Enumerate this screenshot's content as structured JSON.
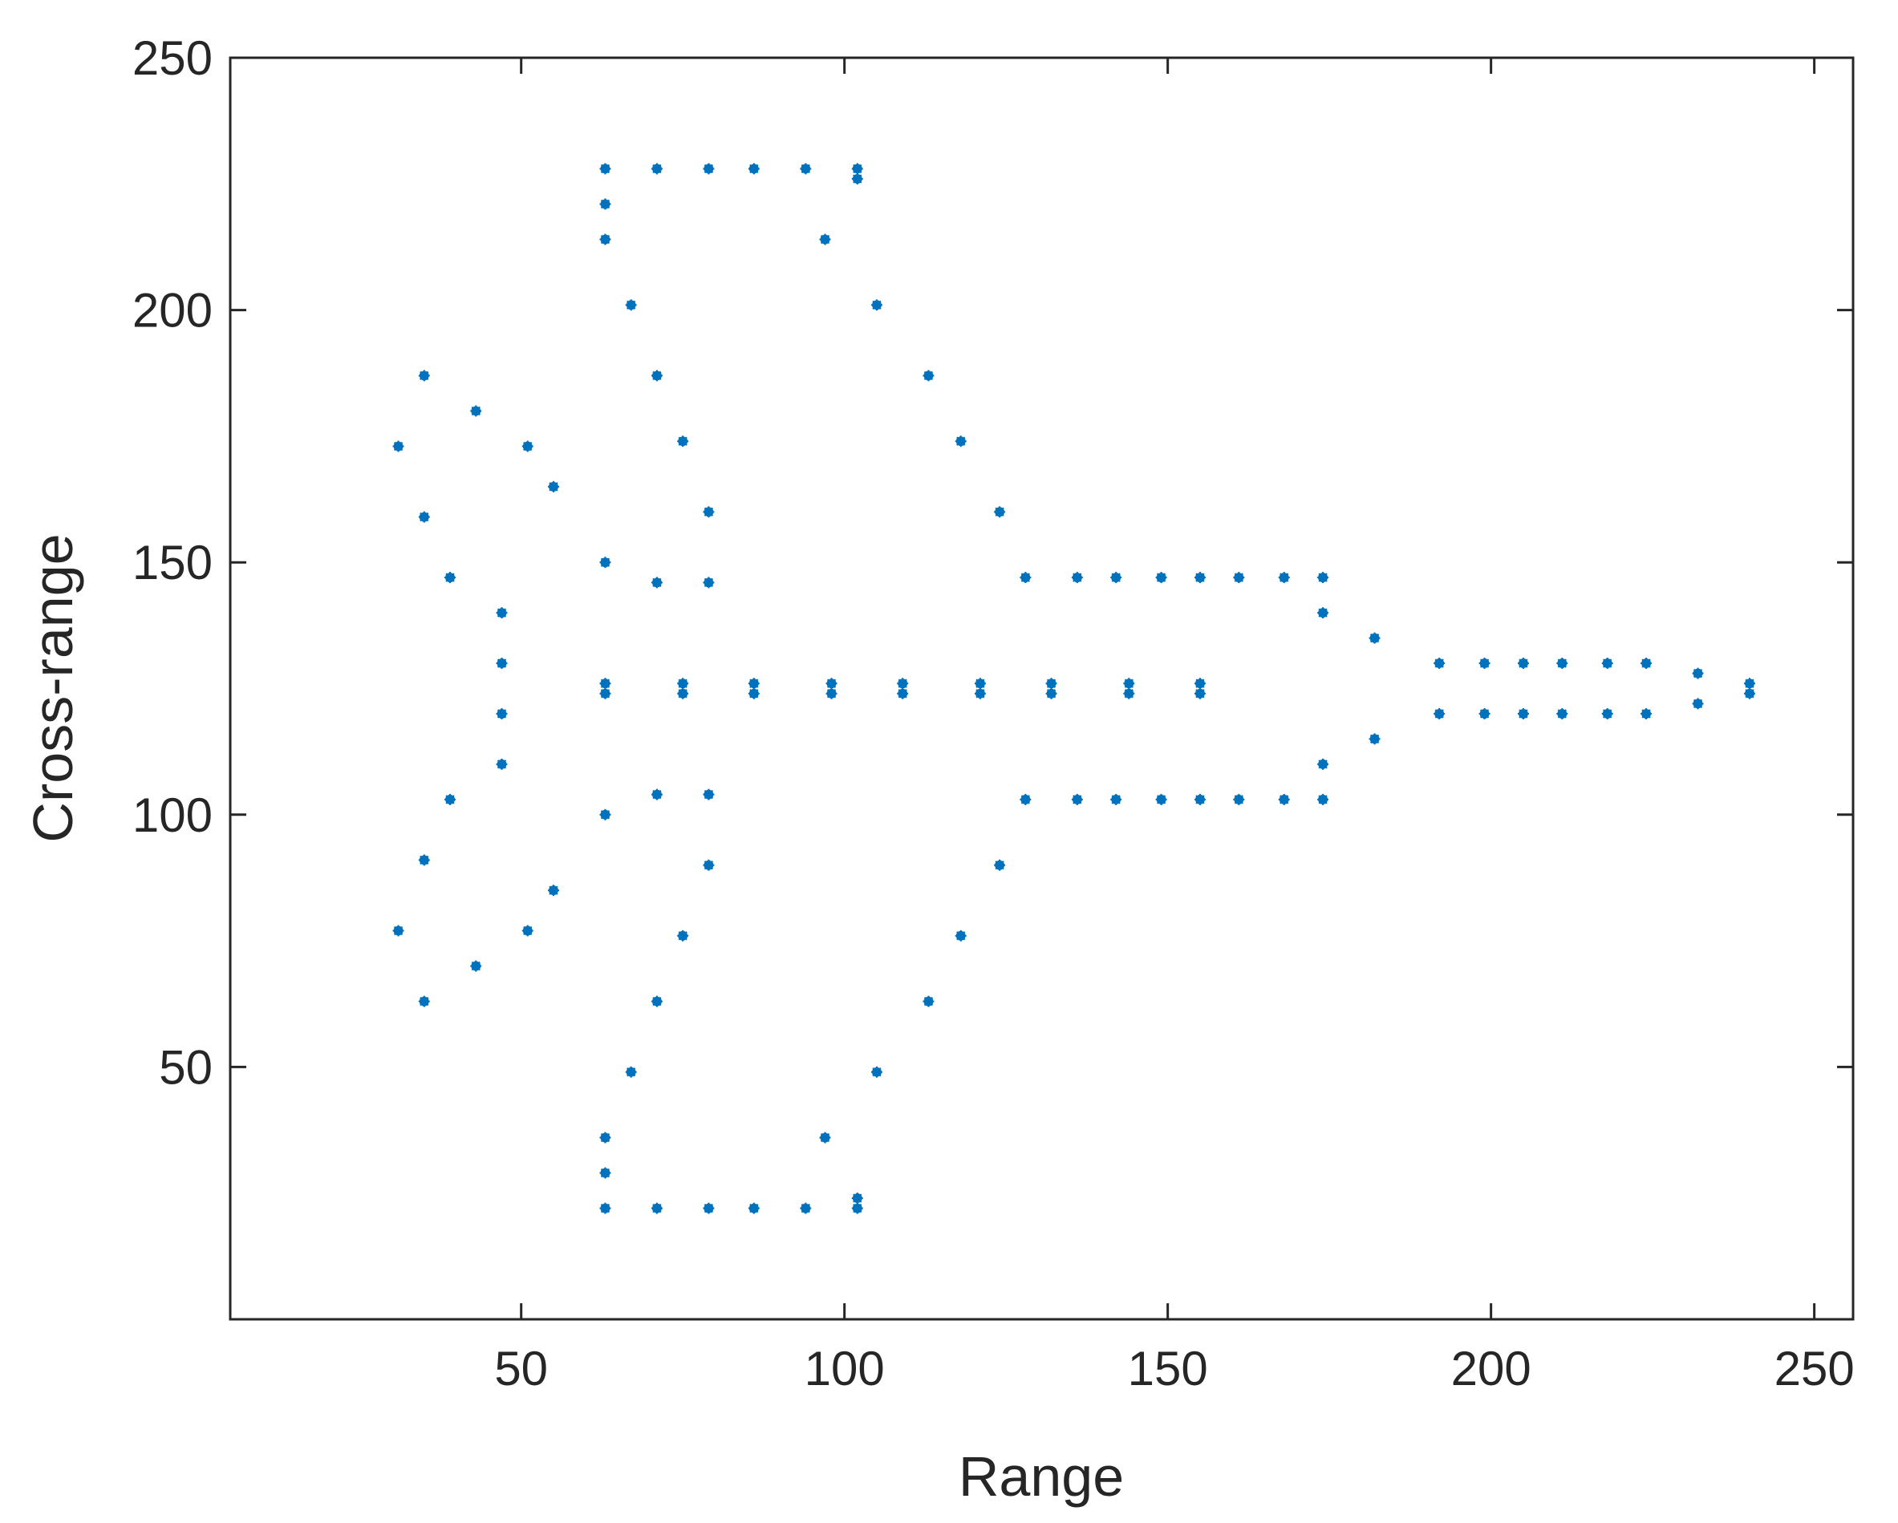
{
  "chart_data": {
    "type": "scatter",
    "title": "",
    "xlabel": "Range",
    "ylabel": "Cross-range",
    "xlim": [
      5,
      256
    ],
    "ylim": [
      0,
      250
    ],
    "xticks": [
      50,
      100,
      150,
      200,
      250
    ],
    "yticks": [
      50,
      100,
      150,
      200,
      250
    ],
    "grid": false,
    "legend": "none",
    "marker": "*",
    "colors": {
      "series": "#0072BD",
      "axes": "#262626",
      "background": "#ffffff"
    },
    "series": [
      {
        "points": [
          [
            63,
            228
          ],
          [
            71,
            228
          ],
          [
            79,
            228
          ],
          [
            86,
            228
          ],
          [
            94,
            228
          ],
          [
            102,
            228
          ],
          [
            102,
            226
          ],
          [
            63,
            221
          ],
          [
            63,
            214
          ],
          [
            97,
            214
          ],
          [
            67,
            201
          ],
          [
            105,
            201
          ],
          [
            35,
            187
          ],
          [
            71,
            187
          ],
          [
            113,
            187
          ],
          [
            43,
            180
          ],
          [
            31,
            173
          ],
          [
            51,
            173
          ],
          [
            75,
            174
          ],
          [
            118,
            174
          ],
          [
            55,
            165
          ],
          [
            35,
            159
          ],
          [
            79,
            160
          ],
          [
            124,
            160
          ],
          [
            63,
            150
          ],
          [
            39,
            147
          ],
          [
            71,
            146
          ],
          [
            79,
            146
          ],
          [
            128,
            147
          ],
          [
            136,
            147
          ],
          [
            142,
            147
          ],
          [
            149,
            147
          ],
          [
            155,
            147
          ],
          [
            161,
            147
          ],
          [
            168,
            147
          ],
          [
            174,
            147
          ],
          [
            47,
            140
          ],
          [
            174,
            140
          ],
          [
            182,
            135
          ],
          [
            47,
            130
          ],
          [
            192,
            130
          ],
          [
            199,
            130
          ],
          [
            205,
            130
          ],
          [
            211,
            130
          ],
          [
            218,
            130
          ],
          [
            224,
            130
          ],
          [
            232,
            128
          ],
          [
            63,
            126
          ],
          [
            63,
            124
          ],
          [
            75,
            126
          ],
          [
            75,
            124
          ],
          [
            86,
            126
          ],
          [
            86,
            124
          ],
          [
            98,
            126
          ],
          [
            98,
            124
          ],
          [
            109,
            126
          ],
          [
            109,
            124
          ],
          [
            121,
            126
          ],
          [
            121,
            124
          ],
          [
            132,
            126
          ],
          [
            132,
            124
          ],
          [
            144,
            126
          ],
          [
            144,
            124
          ],
          [
            155,
            126
          ],
          [
            155,
            124
          ],
          [
            240,
            126
          ],
          [
            240,
            124
          ],
          [
            232,
            122
          ],
          [
            47,
            120
          ],
          [
            192,
            120
          ],
          [
            199,
            120
          ],
          [
            205,
            120
          ],
          [
            211,
            120
          ],
          [
            218,
            120
          ],
          [
            224,
            120
          ],
          [
            182,
            115
          ],
          [
            47,
            110
          ],
          [
            174,
            110
          ],
          [
            39,
            103
          ],
          [
            71,
            104
          ],
          [
            79,
            104
          ],
          [
            128,
            103
          ],
          [
            136,
            103
          ],
          [
            142,
            103
          ],
          [
            149,
            103
          ],
          [
            155,
            103
          ],
          [
            161,
            103
          ],
          [
            168,
            103
          ],
          [
            174,
            103
          ],
          [
            63,
            100
          ],
          [
            35,
            91
          ],
          [
            79,
            90
          ],
          [
            124,
            90
          ],
          [
            55,
            85
          ],
          [
            31,
            77
          ],
          [
            51,
            77
          ],
          [
            75,
            76
          ],
          [
            118,
            76
          ],
          [
            43,
            70
          ],
          [
            35,
            63
          ],
          [
            71,
            63
          ],
          [
            113,
            63
          ],
          [
            67,
            49
          ],
          [
            105,
            49
          ],
          [
            63,
            36
          ],
          [
            97,
            36
          ],
          [
            63,
            29
          ],
          [
            63,
            22
          ],
          [
            71,
            22
          ],
          [
            79,
            22
          ],
          [
            86,
            22
          ],
          [
            94,
            22
          ],
          [
            102,
            22
          ],
          [
            102,
            24
          ]
        ]
      }
    ]
  }
}
